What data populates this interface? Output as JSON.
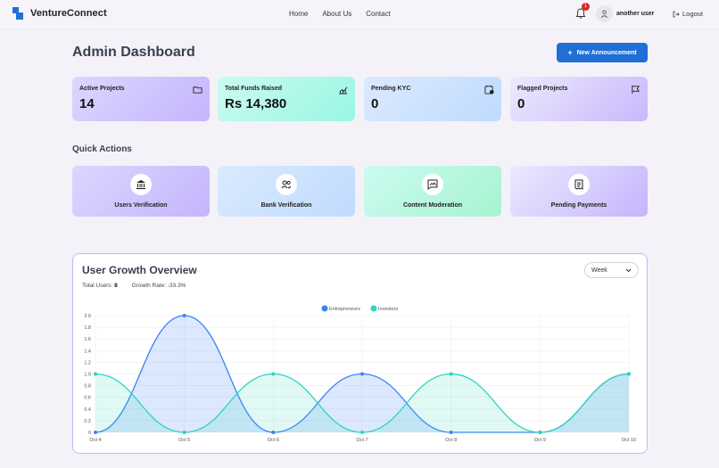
{
  "nav": {
    "brand": "VentureConnect",
    "links": [
      "Home",
      "About Us",
      "Contact"
    ],
    "notification_count": "1",
    "username": "another user",
    "logout": "Logout"
  },
  "header": {
    "title": "Admin Dashboard",
    "announce_button": "New Announcement"
  },
  "stats": [
    {
      "label": "Active Projects",
      "value": "14",
      "icon": "folder-icon"
    },
    {
      "label": "Total Funds Raised",
      "value": "Rs 14,380",
      "icon": "trend-chart-icon"
    },
    {
      "label": "Pending KYC",
      "value": "0",
      "icon": "calendar-clock-icon"
    },
    {
      "label": "Flagged Projects",
      "value": "0",
      "icon": "flag-icon"
    }
  ],
  "quick_actions": {
    "title": "Quick Actions",
    "items": [
      {
        "label": "Users Verification",
        "icon": "bank-icon"
      },
      {
        "label": "Bank Verification",
        "icon": "users-check-icon"
      },
      {
        "label": "Content Moderation",
        "icon": "chat-image-icon"
      },
      {
        "label": "Pending Payments",
        "icon": "receipt-icon"
      }
    ]
  },
  "growth": {
    "title": "User Growth Overview",
    "total_users_label": "Total Users:",
    "total_users": "8",
    "growth_rate": "Growth Rate: -33.3%",
    "period": "Week"
  },
  "colors": {
    "entrepreneurs": "#3b82f6",
    "investors": "#2dd4bf"
  },
  "chart_data": {
    "type": "area",
    "categories": [
      "Oct 4",
      "Oct 5",
      "Oct 6",
      "Oct 7",
      "Oct 8",
      "Oct 9",
      "Oct 10"
    ],
    "series": [
      {
        "name": "Entrepreneurs",
        "values": [
          0,
          2,
          0,
          1,
          0,
          0,
          1
        ]
      },
      {
        "name": "Investors",
        "values": [
          1,
          0,
          1,
          0,
          1,
          0,
          1
        ]
      }
    ],
    "yticks": [
      "0",
      "0.2",
      "0.4",
      "0.6",
      "0.8",
      "1.0",
      "1.2",
      "1.4",
      "1.6",
      "1.8",
      "2.0"
    ],
    "ylim": [
      0,
      2
    ],
    "legend": "top-center",
    "grid": true,
    "smooth": true
  }
}
